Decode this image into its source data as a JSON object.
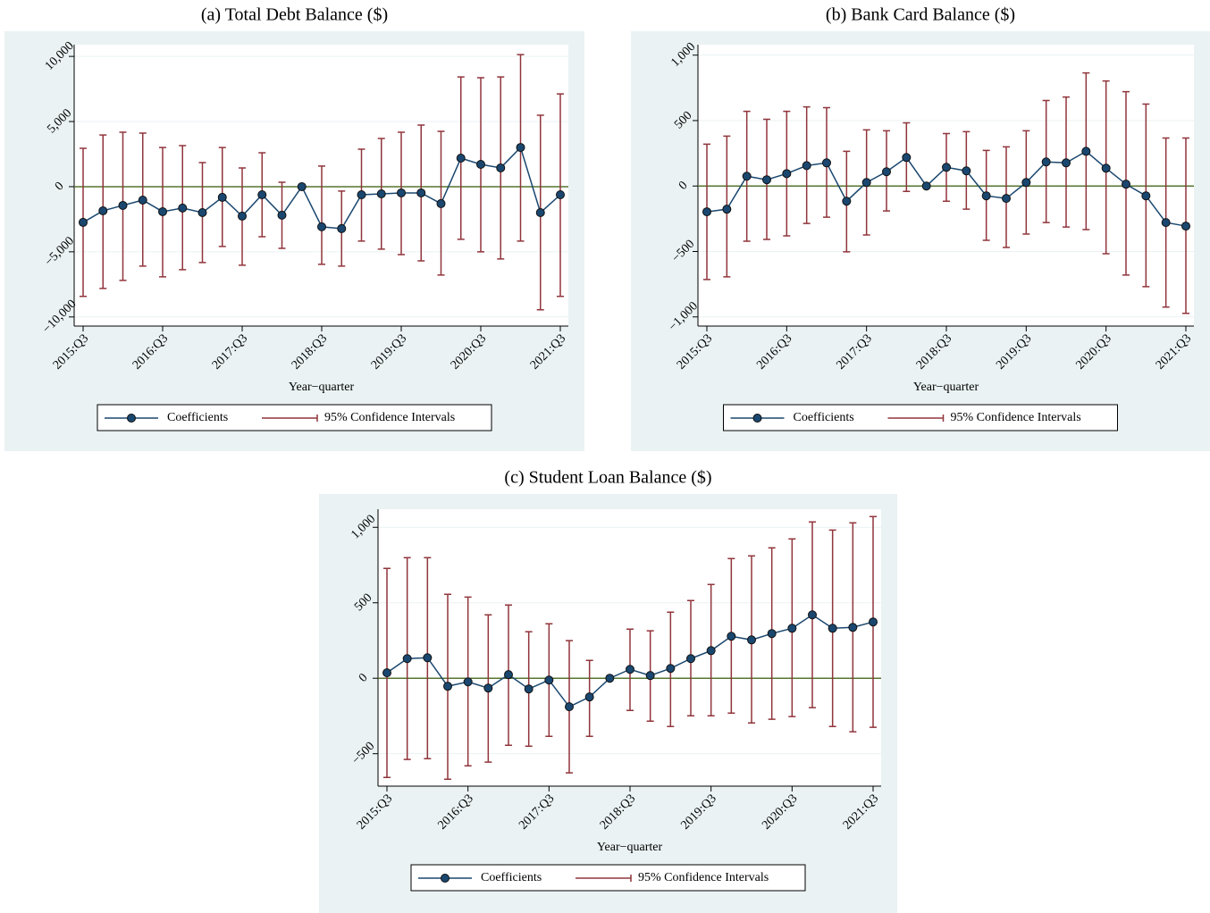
{
  "chart_data": [
    {
      "type": "errorbar",
      "title": "(a) Total Debt Balance ($)",
      "x_label": "Year−quarter",
      "categories": [
        "2015:Q3",
        null,
        null,
        null,
        "2016:Q3",
        null,
        null,
        null,
        "2017:Q3",
        null,
        null,
        null,
        "2018:Q3",
        null,
        null,
        null,
        "2019:Q3",
        null,
        null,
        null,
        "2020:Q3",
        null,
        null,
        null,
        "2021:Q3"
      ],
      "series": [
        {
          "name": "Coefficients",
          "color": "#1a476f",
          "values": [
            -2740,
            -1850,
            -1440,
            -1030,
            -1920,
            -1640,
            -1990,
            -820,
            -2260,
            -620,
            -2190,
            0,
            -3080,
            -3220,
            -620,
            -550,
            -480,
            -480,
            -1300,
            2190,
            1710,
            1440,
            3010,
            -1990,
            -620
          ]
        },
        {
          "name": "95% Confidence Intervals",
          "color": "#90353b",
          "low": [
            -8420,
            -7810,
            -7190,
            -6100,
            -6920,
            -6370,
            -5820,
            -4590,
            -6030,
            -3840,
            -4730,
            null,
            -5960,
            -6100,
            -4180,
            -4790,
            -5210,
            -5690,
            -6780,
            -4040,
            -5000,
            -5550,
            -4180,
            -9450,
            -8420
          ],
          "high": [
            2950,
            3970,
            4180,
            4110,
            3010,
            3150,
            1850,
            3010,
            1440,
            2600,
            340,
            null,
            1580,
            -340,
            2880,
            3700,
            4180,
            4730,
            4250,
            8420,
            8360,
            8420,
            10140,
            5480,
            7120
          ]
        }
      ],
      "refline": 0,
      "refline_color": "#55752f",
      "ylim": [
        -10700,
        10900
      ],
      "yticks": [
        {
          "value": -10000,
          "label": "−10,000"
        },
        {
          "value": -5000,
          "label": "−5,000"
        },
        0,
        {
          "value": 5000,
          "label": "5,000"
        },
        {
          "value": 10000,
          "label": "10,000"
        }
      ],
      "grid": true
    },
    {
      "type": "errorbar",
      "title": "(b) Bank Card Balance ($)",
      "x_label": "Year−quarter",
      "categories": [
        "2015:Q3",
        null,
        null,
        null,
        "2016:Q3",
        null,
        null,
        null,
        "2017:Q3",
        null,
        null,
        null,
        "2018:Q3",
        null,
        null,
        null,
        "2019:Q3",
        null,
        null,
        null,
        "2020:Q3",
        null,
        null,
        null,
        "2021:Q3"
      ],
      "series": [
        {
          "name": "Coefficients",
          "color": "#1a476f",
          "values": [
            -197,
            -177,
            75,
            48,
            95,
            156,
            177,
            -116,
            27,
            109,
            218,
            0,
            143,
            116,
            -75,
            -95,
            27,
            184,
            177,
            265,
            136,
            14,
            -75,
            -279,
            -306
          ]
        },
        {
          "name": "95% Confidence Intervals",
          "color": "#90353b",
          "low": [
            -714,
            -694,
            -422,
            -408,
            -381,
            -286,
            -238,
            -503,
            -374,
            -190,
            -41,
            null,
            -116,
            -177,
            -415,
            -469,
            -367,
            -279,
            -313,
            -333,
            -517,
            -680,
            -769,
            -925,
            -973
          ],
          "high": [
            320,
            381,
            571,
            510,
            571,
            605,
            599,
            265,
            429,
            422,
            483,
            null,
            401,
            415,
            272,
            299,
            422,
            653,
            680,
            864,
            803,
            721,
            626,
            367,
            367
          ]
        }
      ],
      "refline": 0,
      "refline_color": "#55752f",
      "ylim": [
        -1070,
        1080
      ],
      "yticks": [
        {
          "value": -1000,
          "label": "−1,000"
        },
        {
          "value": -500,
          "label": "−500"
        },
        0,
        500,
        {
          "value": 1000,
          "label": "1,000"
        }
      ],
      "grid": true
    },
    {
      "type": "errorbar",
      "title": "(c) Student Loan Balance ($)",
      "x_label": "Year−quarter",
      "categories": [
        "2015:Q3",
        null,
        null,
        null,
        "2016:Q3",
        null,
        null,
        null,
        "2017:Q3",
        null,
        null,
        null,
        "2018:Q3",
        null,
        null,
        null,
        "2019:Q3",
        null,
        null,
        null,
        "2020:Q3",
        null,
        null,
        null,
        "2021:Q3"
      ],
      "series": [
        {
          "name": "Coefficients",
          "color": "#1a476f",
          "values": [
            36,
            130,
            136,
            -53,
            -24,
            -65,
            24,
            -71,
            -12,
            -189,
            -124,
            0,
            59,
            18,
            65,
            130,
            183,
            278,
            254,
            296,
            331,
            420,
            331,
            337,
            373
          ]
        },
        {
          "name": "95% Confidence Intervals",
          "color": "#90353b",
          "low": [
            -657,
            -538,
            -533,
            -669,
            -580,
            -556,
            -444,
            -450,
            -385,
            -627,
            -385,
            null,
            -213,
            -284,
            -320,
            -249,
            -249,
            -231,
            -296,
            -272,
            -254,
            -195,
            -320,
            -355,
            -325
          ],
          "high": [
            728,
            799,
            799,
            556,
            538,
            420,
            485,
            308,
            361,
            249,
            118,
            null,
            325,
            314,
            438,
            515,
            621,
            793,
            811,
            864,
            923,
            1036,
            982,
            1030,
            1071
          ]
        }
      ],
      "refline": 0,
      "refline_color": "#55752f",
      "ylim": [
        -715,
        1120
      ],
      "yticks": [
        {
          "value": -500,
          "label": "−500"
        },
        0,
        500,
        {
          "value": 1000,
          "label": "1,000"
        }
      ],
      "grid": true
    }
  ]
}
